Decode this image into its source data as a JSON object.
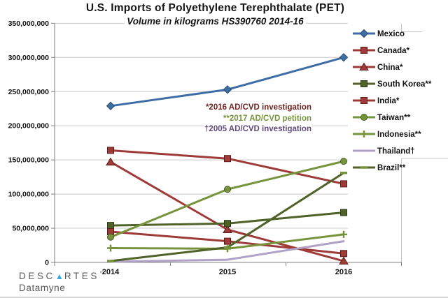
{
  "page": {
    "background": "#FFFFFF"
  },
  "brand": {
    "wordmark_pre": "DESC",
    "wordmark_post": "RTES",
    "trademark": "™",
    "product": "Datamyne",
    "text_color": "#58595B",
    "triangle_color": "#2FA8DF"
  },
  "chart_data": {
    "type": "line",
    "title": "U.S. Imports of Polyethylene Terephthalate (PET)",
    "subtitle": "Volume in kilograms HS390760 2014-16",
    "categories": [
      "2014",
      "2015",
      "2016"
    ],
    "ylim": [
      0,
      350000000
    ],
    "ytick_step": 50000000,
    "ytick_labels": [
      "0",
      "50,000,000",
      "100,000,000",
      "150,000,000",
      "200,000,000",
      "250,000,000",
      "300,000,000",
      "350,000,000"
    ],
    "grid": true,
    "legend_position": "right",
    "axis_color": "#7F7F7F",
    "grid_color": "#C8C8C8",
    "series": [
      {
        "name": "Mexico",
        "marker": "diamond",
        "color": "#3F6EA6",
        "marker_stroke": "#27496F",
        "values": [
          229000000,
          253000000,
          300000000
        ]
      },
      {
        "name": "Canada*",
        "marker": "square",
        "color": "#9E3B38",
        "marker_stroke": "#5F1B19",
        "values": [
          164000000,
          152000000,
          115000000
        ]
      },
      {
        "name": "China*",
        "marker": "triangle",
        "color": "#9E3B38",
        "marker_stroke": "#5F1B19",
        "values": [
          147000000,
          48000000,
          2000000
        ]
      },
      {
        "name": "South Korea**",
        "marker": "square",
        "color": "#4F6228",
        "marker_stroke": "#2C3A12",
        "values": [
          54000000,
          57000000,
          73000000
        ]
      },
      {
        "name": "India*",
        "marker": "square",
        "color": "#9E3B38",
        "marker_stroke": "#5F1B19",
        "values": [
          45000000,
          31000000,
          13000000
        ]
      },
      {
        "name": "Taiwan**",
        "marker": "circle",
        "color": "#77933C",
        "marker_stroke": "#4A5E24",
        "values": [
          37000000,
          107000000,
          148000000
        ]
      },
      {
        "name": "Indonesia**",
        "marker": "plus",
        "color": "#77933C",
        "marker_stroke": "#77933C",
        "values": [
          21000000,
          20000000,
          41000000
        ]
      },
      {
        "name": "Thailand†",
        "marker": "none",
        "color": "#B2A1C7",
        "marker_stroke": "#B2A1C7",
        "values": [
          1000000,
          4000000,
          31000000
        ]
      },
      {
        "name": "Brazil**",
        "marker": "dash",
        "color": "#4F6228",
        "marker_stroke": "#77933C",
        "values": [
          2000000,
          22000000,
          131000000
        ]
      }
    ],
    "annotations": [
      {
        "text": "*2016 AD/CVD investigation",
        "color": "#6E2420"
      },
      {
        "text": "**2017 AD/CVD petition",
        "color": "#77933C"
      },
      {
        "text": "†2005 AD/CVD investigation",
        "color": "#604A7B"
      }
    ]
  }
}
